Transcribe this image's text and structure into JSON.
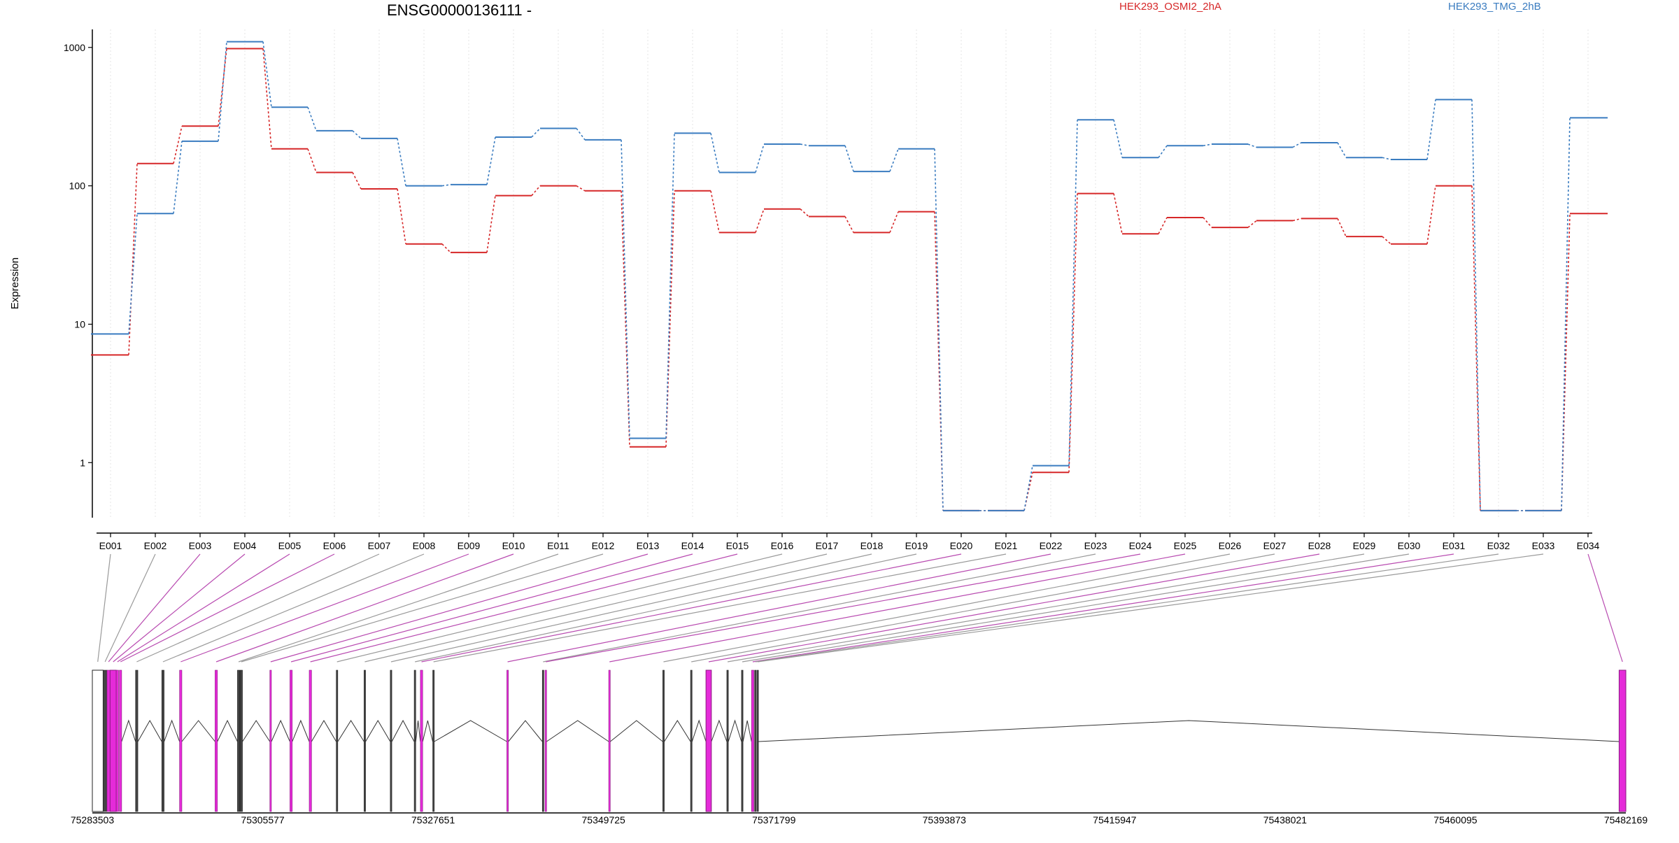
{
  "chart_data": {
    "type": "line",
    "title": "ENSG00000136111 -",
    "ylabel": "Expression",
    "yscale": "log",
    "ylim": [
      0.4,
      1350
    ],
    "yticks": [
      {
        "value": 1,
        "label": "1"
      },
      {
        "value": 10,
        "label": "10"
      },
      {
        "value": 100,
        "label": "100"
      },
      {
        "value": 1000,
        "label": "1000"
      }
    ],
    "grid": "vertical",
    "legend_position": "top",
    "categories": [
      "E001",
      "E002",
      "E003",
      "E004",
      "E005",
      "E006",
      "E007",
      "E008",
      "E009",
      "E010",
      "E011",
      "E012",
      "E013",
      "E014",
      "E015",
      "E016",
      "E017",
      "E018",
      "E019",
      "E020",
      "E021",
      "E022",
      "E023",
      "E024",
      "E025",
      "E026",
      "E027",
      "E028",
      "E029",
      "E030",
      "E031",
      "E032",
      "E033",
      "E034"
    ],
    "series": [
      {
        "name": "HEK293_OSMI2_2hA",
        "color": "#d62728",
        "values": [
          6,
          145,
          270,
          980,
          185,
          125,
          95,
          38,
          33,
          85,
          100,
          92,
          1.3,
          92,
          46,
          68,
          60,
          46,
          65,
          0.45,
          0.45,
          0.85,
          88,
          45,
          59,
          50,
          56,
          58,
          43,
          38,
          100,
          0.45,
          0.45,
          63
        ]
      },
      {
        "name": "HEK293_TMG_2hB",
        "color": "#3a7cc0",
        "values": [
          8.5,
          63,
          210,
          1100,
          370,
          250,
          220,
          100,
          102,
          225,
          260,
          215,
          1.5,
          240,
          125,
          200,
          195,
          127,
          185,
          0.45,
          0.45,
          0.95,
          300,
          160,
          195,
          200,
          190,
          205,
          160,
          155,
          420,
          0.45,
          0.45,
          310
        ]
      }
    ],
    "gene_model": {
      "start_label": "75283503",
      "end_label": "75482169",
      "axis_start": 75283503,
      "axis_end": 75482169,
      "axis_ticks": [
        "75283503",
        "75305577",
        "75327651",
        "75349725",
        "75371799",
        "75393873",
        "75415947",
        "75438021",
        "75460095",
        "75482169"
      ],
      "highlight_color": "#e52bd9",
      "exons": [
        {
          "id": "E001",
          "start": 75283503,
          "end": 75284900,
          "highlight": false
        },
        {
          "id": "E002",
          "start": 75284900,
          "end": 75285400,
          "highlight": false
        },
        {
          "id": "E003",
          "start": 75285400,
          "end": 75285800,
          "highlight": true
        },
        {
          "id": "E004",
          "start": 75285800,
          "end": 75286600,
          "highlight": true
        },
        {
          "id": "E005",
          "start": 75286600,
          "end": 75286900,
          "highlight": true
        },
        {
          "id": "E006",
          "start": 75287000,
          "end": 75287300,
          "highlight": true
        },
        {
          "id": "E007",
          "start": 75289100,
          "end": 75289400,
          "highlight": false
        },
        {
          "id": "E008",
          "start": 75292500,
          "end": 75292800,
          "highlight": false
        },
        {
          "id": "E009",
          "start": 75294800,
          "end": 75295100,
          "highlight": true
        },
        {
          "id": "E010",
          "start": 75299400,
          "end": 75299700,
          "highlight": true
        },
        {
          "id": "E011",
          "start": 75302300,
          "end": 75302600,
          "highlight": false
        },
        {
          "id": "E012",
          "start": 75302650,
          "end": 75302950,
          "highlight": false
        },
        {
          "id": "E013",
          "start": 75306500,
          "end": 75306700,
          "highlight": true
        },
        {
          "id": "E014",
          "start": 75309100,
          "end": 75309400,
          "highlight": true
        },
        {
          "id": "E015",
          "start": 75311600,
          "end": 75311900,
          "highlight": true
        },
        {
          "id": "E016",
          "start": 75315100,
          "end": 75315300,
          "highlight": false
        },
        {
          "id": "E017",
          "start": 75318700,
          "end": 75318900,
          "highlight": false
        },
        {
          "id": "E018",
          "start": 75322100,
          "end": 75322300,
          "highlight": false
        },
        {
          "id": "E019",
          "start": 75325200,
          "end": 75325400,
          "highlight": false
        },
        {
          "id": "E020",
          "start": 75326000,
          "end": 75326300,
          "highlight": true
        },
        {
          "id": "E021",
          "start": 75327600,
          "end": 75327800,
          "highlight": false
        },
        {
          "id": "E022",
          "start": 75337200,
          "end": 75337400,
          "highlight": true
        },
        {
          "id": "E023",
          "start": 75341800,
          "end": 75342000,
          "highlight": false
        },
        {
          "id": "E024",
          "start": 75342150,
          "end": 75342350,
          "highlight": true
        },
        {
          "id": "E025",
          "start": 75350400,
          "end": 75350600,
          "highlight": true
        },
        {
          "id": "E026",
          "start": 75357400,
          "end": 75357600,
          "highlight": false
        },
        {
          "id": "E027",
          "start": 75361000,
          "end": 75361200,
          "highlight": false
        },
        {
          "id": "E028",
          "start": 75363000,
          "end": 75363700,
          "highlight": true
        },
        {
          "id": "E029",
          "start": 75365700,
          "end": 75365900,
          "highlight": false
        },
        {
          "id": "E030",
          "start": 75367600,
          "end": 75367800,
          "highlight": false
        },
        {
          "id": "E031",
          "start": 75368900,
          "end": 75369200,
          "highlight": true
        },
        {
          "id": "E032",
          "start": 75369300,
          "end": 75369500,
          "highlight": false
        },
        {
          "id": "E033",
          "start": 75369600,
          "end": 75369800,
          "highlight": false
        },
        {
          "id": "E034",
          "start": 75481300,
          "end": 75482169,
          "highlight": true
        }
      ]
    }
  }
}
